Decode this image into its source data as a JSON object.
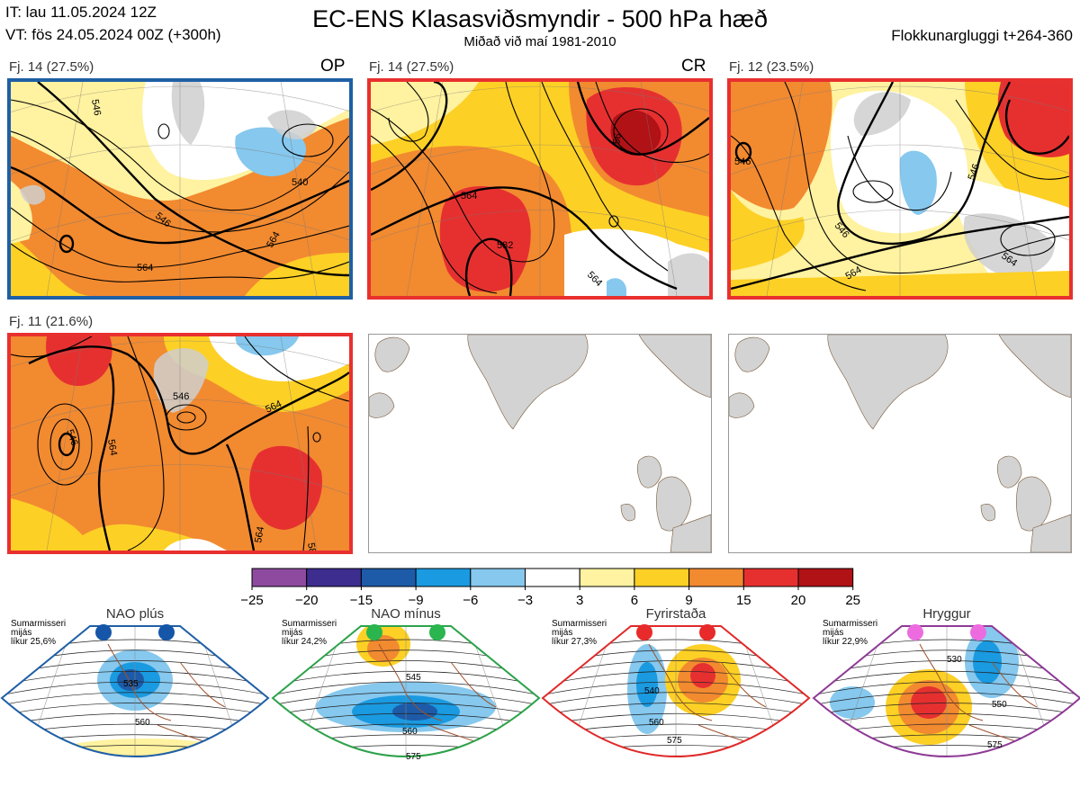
{
  "header": {
    "it": "IT: lau 11.05.2024 12Z",
    "vt": "VT: fös 24.05.2024 00Z  (+300h)",
    "title": "EC-ENS Klasasviðsmyndir - 500 hPa hæð",
    "subtitle": "Miðað við maí 1981-2010",
    "window": "Flokkunargluggi t+264-360"
  },
  "panels": [
    {
      "label": "Fj. 14 (27.5%)",
      "tag": "OP",
      "border": "#1f5fa5",
      "contours": [
        "546",
        "540",
        "564",
        "564",
        "546"
      ]
    },
    {
      "label": "Fj. 14 (27.5%)",
      "tag": "CR",
      "border": "#e8302f",
      "contours": [
        "564",
        "582",
        "564",
        "56"
      ]
    },
    {
      "label": "Fj. 12 (23.5%)",
      "tag": "",
      "border": "#e8302f",
      "contours": [
        "546",
        "546",
        "564",
        "564",
        "546"
      ]
    },
    {
      "label": "Fj. 11 (21.6%)",
      "tag": "",
      "border": "#e8302f",
      "contours": [
        "546",
        "564",
        "564",
        "546",
        "564",
        "582"
      ]
    }
  ],
  "colorbar": {
    "ticks": [
      "−25",
      "−20",
      "−15",
      "−9",
      "−6",
      "−3",
      "3",
      "6",
      "9",
      "15",
      "20",
      "25"
    ],
    "colors": [
      "#8e4a9e",
      "#3c2d8f",
      "#1d5ba8",
      "#1a9ae0",
      "#86c8ee",
      "#ffffff",
      "#fff2a0",
      "#fdd025",
      "#f28a30",
      "#e63030",
      "#b01216"
    ]
  },
  "regimes": [
    {
      "title": "NAO plús",
      "info": [
        "Sumarmisseri",
        "mijás",
        "líkur 25,6%"
      ],
      "border": "#1f5fa5",
      "dot": "#1556a8",
      "labels": [
        "535",
        "560"
      ]
    },
    {
      "title": "NAO mínus",
      "info": [
        "Sumarmisseri",
        "mijás",
        "líkur 24,2%"
      ],
      "border": "#2ca24a",
      "dot": "#2ab54e",
      "labels": [
        "545",
        "560",
        "575"
      ]
    },
    {
      "title": "Fyrirstaða",
      "info": [
        "Sumarmisseri",
        "mijás",
        "líkur 27,3%"
      ],
      "border": "#e02a2a",
      "dot": "#e82a2a",
      "labels": [
        "540",
        "560",
        "575"
      ]
    },
    {
      "title": "Hryggur",
      "info": [
        "Sumarmisseri",
        "mijás",
        "líkur 22,9%"
      ],
      "border": "#8e3b96",
      "dot": "#ec6ce0",
      "labels": [
        "530",
        "550",
        "575"
      ]
    }
  ]
}
